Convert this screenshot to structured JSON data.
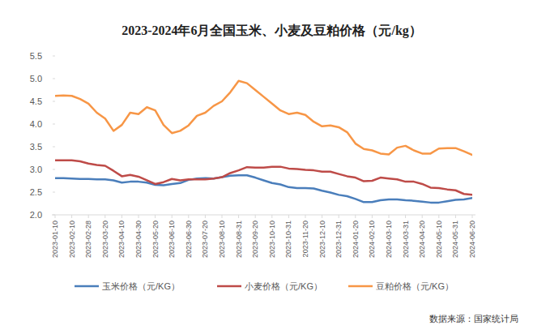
{
  "chart_data": {
    "type": "line",
    "title": "2023-2024年6月全国玉米、小麦及豆粕价格（元/kg）",
    "source": "数据来源：国家统计局",
    "categories": [
      "2023-01-10",
      null,
      "2023-02-10",
      null,
      "2023-02-28",
      null,
      "2023-03-20",
      null,
      "2023-04-10",
      null,
      "2023-04-30",
      null,
      "2023-05-20",
      null,
      "2023-06-10",
      null,
      "2023-06-30",
      null,
      "2023-07-20",
      null,
      "2023-08-10",
      null,
      "2023-08-31",
      null,
      "2023-09-20",
      null,
      "2023-10-10",
      null,
      "2023-10-31",
      null,
      "2023-11-20",
      null,
      "2023-12-10",
      null,
      "2023-12-31",
      null,
      "2024-01-20",
      null,
      "2024-02-10",
      null,
      "2024-03-10",
      null,
      "2024-03-31",
      null,
      "2024-04-20",
      null,
      "2024-05-10",
      null,
      "2024-05-31",
      null,
      "2024-06-20"
    ],
    "series": [
      {
        "name": "玉米价格（元/KG）",
        "color": "#4a7ebb",
        "values": [
          2.81,
          2.81,
          2.8,
          2.79,
          2.79,
          2.78,
          2.78,
          2.76,
          2.71,
          2.73,
          2.73,
          2.71,
          2.66,
          2.65,
          2.68,
          2.7,
          2.77,
          2.8,
          2.81,
          2.8,
          2.83,
          2.86,
          2.87,
          2.87,
          2.82,
          2.76,
          2.7,
          2.67,
          2.61,
          2.59,
          2.59,
          2.58,
          2.53,
          2.49,
          2.44,
          2.41,
          2.35,
          2.28,
          2.28,
          2.32,
          2.34,
          2.34,
          2.32,
          2.31,
          2.29,
          2.27,
          2.27,
          2.3,
          2.33,
          2.34,
          2.37
        ]
      },
      {
        "name": "小麦价格（元/KG）",
        "color": "#be4b48",
        "values": [
          3.2,
          3.2,
          3.2,
          3.18,
          3.13,
          3.1,
          3.08,
          2.97,
          2.85,
          2.88,
          2.84,
          2.76,
          2.68,
          2.72,
          2.79,
          2.76,
          2.78,
          2.78,
          2.78,
          2.8,
          2.83,
          2.92,
          2.98,
          3.05,
          3.04,
          3.04,
          3.06,
          3.06,
          3.02,
          3.01,
          2.99,
          2.98,
          2.95,
          2.95,
          2.9,
          2.85,
          2.82,
          2.74,
          2.75,
          2.82,
          2.8,
          2.78,
          2.73,
          2.73,
          2.68,
          2.6,
          2.59,
          2.56,
          2.54,
          2.46,
          2.44
        ]
      },
      {
        "name": "豆粕价格（元/KG）",
        "color": "#f79646",
        "values": [
          4.62,
          4.63,
          4.62,
          4.55,
          4.45,
          4.25,
          4.12,
          3.85,
          3.98,
          4.25,
          4.22,
          4.37,
          4.3,
          3.98,
          3.8,
          3.85,
          3.97,
          4.18,
          4.25,
          4.4,
          4.5,
          4.7,
          4.95,
          4.9,
          4.75,
          4.6,
          4.45,
          4.3,
          4.22,
          4.25,
          4.2,
          4.05,
          3.95,
          3.97,
          3.93,
          3.82,
          3.57,
          3.45,
          3.42,
          3.35,
          3.33,
          3.48,
          3.52,
          3.42,
          3.35,
          3.35,
          3.46,
          3.47,
          3.47,
          3.4,
          3.32
        ]
      }
    ],
    "ylim": [
      2,
      5.5
    ],
    "yticks": [
      {
        "value": 2,
        "label": "2.0"
      },
      2.5,
      {
        "value": 3,
        "label": "3.0"
      },
      3.5,
      {
        "value": 4,
        "label": "4.0"
      },
      4.5,
      {
        "value": 5,
        "label": "5.0"
      },
      5.5
    ],
    "grid": false,
    "legend": "bottom"
  }
}
